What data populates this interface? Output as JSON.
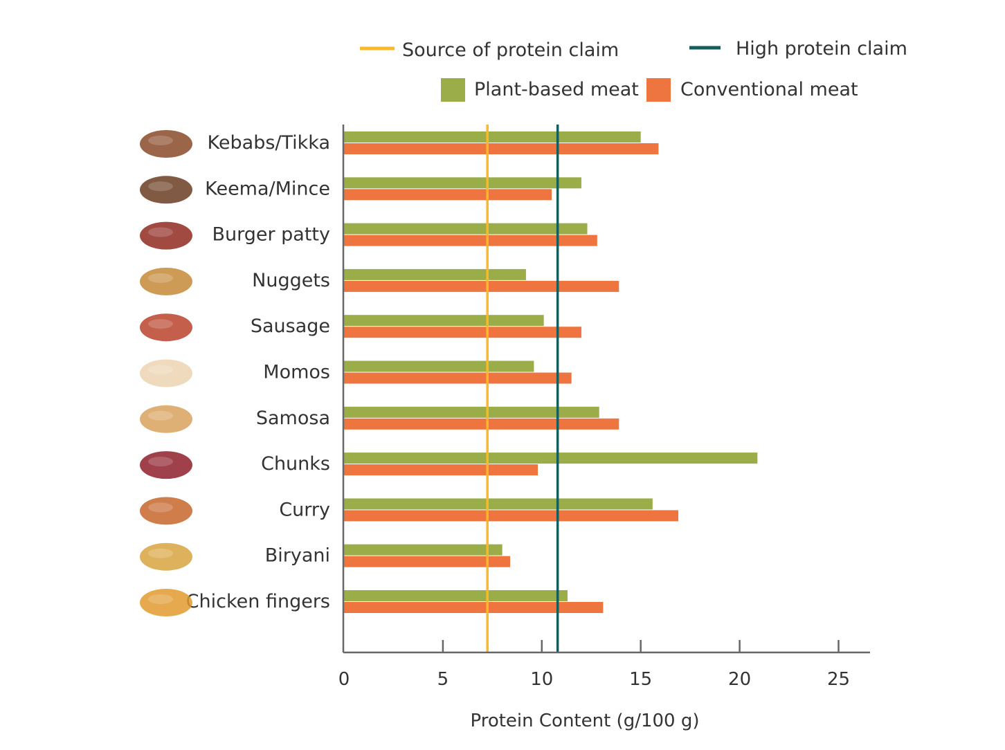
{
  "chart_data": {
    "type": "bar",
    "orientation": "horizontal",
    "xlabel": "Protein Content (g/100 g)",
    "ylabel": "",
    "xlim": [
      0,
      26.5
    ],
    "xticks": [
      0,
      5,
      10,
      15,
      20,
      25
    ],
    "grid": false,
    "legend_placement": "top",
    "categories": [
      "Kebabs/Tikka",
      "Keema/Mince",
      "Burger patty",
      "Nuggets",
      "Sausage",
      "Momos",
      "Samosa",
      "Chunks",
      "Curry",
      "Biryani",
      "Chicken fingers"
    ],
    "category_icons": [
      "kebab-skewers-icon",
      "keema-mince-icon",
      "burger-patty-icon",
      "nuggets-icon",
      "sausage-icon",
      "momos-icon",
      "samosa-icon",
      "meat-chunks-icon",
      "curry-bowl-icon",
      "biryani-plate-icon",
      "chicken-fingers-icon"
    ],
    "series": [
      {
        "name": "Plant-based meat",
        "color": "#9bad48",
        "values": [
          15.0,
          12.0,
          12.3,
          9.2,
          10.1,
          9.6,
          12.9,
          20.9,
          15.6,
          8.0,
          11.3
        ]
      },
      {
        "name": "Conventional meat",
        "color": "#ee7540",
        "values": [
          15.9,
          10.5,
          12.8,
          13.9,
          12.0,
          11.5,
          13.9,
          9.8,
          16.9,
          8.4,
          13.1
        ]
      }
    ],
    "reference_lines": [
      {
        "name": "Source of protein claim",
        "color": "#fbb829",
        "value": 7.25
      },
      {
        "name": "High protein claim",
        "color": "#135e5c",
        "value": 10.8
      }
    ]
  }
}
